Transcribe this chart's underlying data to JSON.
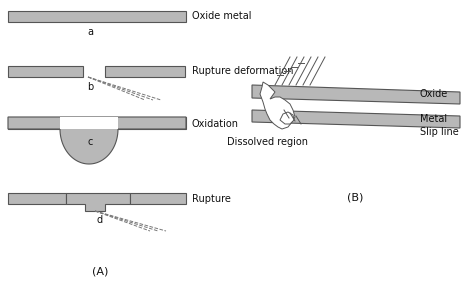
{
  "bg_color": "#ffffff",
  "gray_fill": "#b8b8b8",
  "gray_edge": "#555555",
  "white_fill": "#ffffff",
  "dashed_color": "#777777",
  "text_color": "#111111",
  "labels": {
    "oxide_metal": "Oxide metal",
    "rupture_deformation": "Rupture deformation",
    "oxidation": "Oxidation",
    "rupture": "Rupture",
    "a": "a",
    "b": "b",
    "c": "c",
    "d": "d",
    "A": "(A)",
    "B": "(B)",
    "oxide": "Oxide",
    "metal": "Metal",
    "slip_line": "Slip line",
    "dissolved_region": "Dissolved region"
  }
}
